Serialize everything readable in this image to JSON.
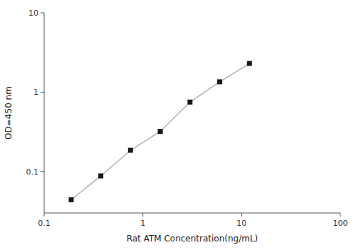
{
  "chart_data": {
    "type": "line",
    "x": [
      0.188,
      0.375,
      0.75,
      1.5,
      3.0,
      6.0,
      12.0
    ],
    "values": [
      0.044,
      0.088,
      0.185,
      0.32,
      0.75,
      1.35,
      2.3
    ],
    "xlabel": "Rat ATM Concentration(ng/mL)",
    "ylabel": "OD=450 nm",
    "xlim": [
      0.1,
      100
    ],
    "ylim": [
      0.03,
      10
    ],
    "xticks": [
      0.1,
      1,
      10,
      100
    ],
    "yticks": [
      0.1,
      1,
      10
    ],
    "log": true,
    "grid": false,
    "color": "#b0b0b0",
    "marker": "square"
  }
}
